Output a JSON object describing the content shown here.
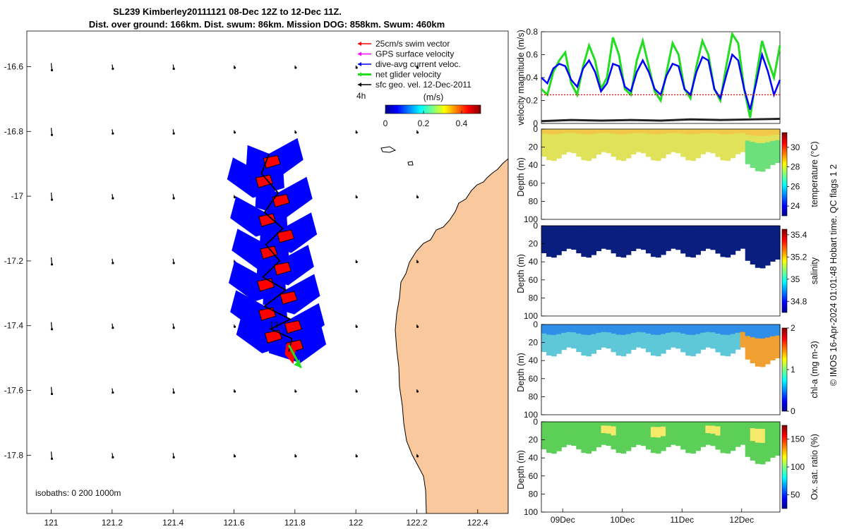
{
  "header": {
    "line1": "SL239 Kimberley20111121 08-Dec 12Z to 12-Dec 11Z.",
    "line2": "Dist. over ground: 166km. Dist. swum: 86km. Mission DOG: 858km. Swum: 460km"
  },
  "footer": {
    "credit": "© IMOS 16-Apr-2024 01:01:48 Hobart time. QC flags 1  2",
    "isobaths": "isobaths: 0   200  1000m"
  },
  "colors": {
    "land": "#F9C89C",
    "track": "#0000FF",
    "swim": "#FF0000",
    "net": "#22DD22",
    "black": "#000000"
  },
  "chart_data": [
    {
      "type": "scatter",
      "name": "glider-track-map",
      "x_ticks": [
        "121",
        "121.2",
        "121.4",
        "121.6",
        "121.8",
        "122",
        "122.2",
        "122.4"
      ],
      "y_ticks": [
        "-16.6",
        "-16.8",
        "-17",
        "-17.2",
        "-17.4",
        "-17.6",
        "-17.8"
      ],
      "xlim": [
        120.92,
        122.5
      ],
      "ylim": [
        -17.98,
        -16.49
      ],
      "legend": [
        {
          "label": "25cm/s swim vector",
          "color": "#FF0000"
        },
        {
          "label": "GPS surface velocity",
          "color": "#FF00FF"
        },
        {
          "label": "dive-avg current veloc.",
          "color": "#0000FF"
        },
        {
          "label": "net glider velocity",
          "color": "#22DD22"
        },
        {
          "label": "sfc geo. vel. 12-Dec-2011",
          "color": "#000000"
        }
      ],
      "colorbar": {
        "label": "(m/s)",
        "ticks": [
          "0",
          "0.2",
          "0.4"
        ],
        "range": [
          0,
          0.5
        ]
      },
      "annotations": {
        "time_label": "4h",
        "track_label": "12"
      },
      "track_lon": [
        121.715,
        121.69,
        121.745,
        121.7,
        121.76,
        121.705,
        121.75,
        121.695,
        121.77,
        121.7,
        121.785,
        121.72,
        121.79,
        121.78
      ],
      "track_lat": [
        -16.87,
        -16.93,
        -16.99,
        -17.05,
        -17.1,
        -17.15,
        -17.2,
        -17.25,
        -17.29,
        -17.34,
        -17.38,
        -17.41,
        -17.44,
        -17.48
      ],
      "net_velocity_vector": {
        "from": [
          121.78,
          -17.46
        ],
        "to": [
          121.82,
          -17.53
        ]
      }
    },
    {
      "type": "line",
      "name": "velocity-magnitude",
      "ylabel": "velocity magnitude (m/s)",
      "ylim": [
        0,
        0.8
      ],
      "y_ticks": [
        "0",
        "0.2",
        "0.4",
        "0.6",
        "0.8"
      ],
      "xlim": [
        0,
        4
      ],
      "series": [
        {
          "name": "net glider velocity",
          "color": "#22DD22",
          "x": [
            0,
            0.1,
            0.2,
            0.3,
            0.4,
            0.5,
            0.6,
            0.7,
            0.8,
            0.9,
            1.0,
            1.1,
            1.2,
            1.3,
            1.4,
            1.5,
            1.6,
            1.7,
            1.8,
            1.9,
            2.0,
            2.1,
            2.2,
            2.3,
            2.4,
            2.5,
            2.6,
            2.7,
            2.8,
            2.9,
            3.0,
            3.1,
            3.2,
            3.3,
            3.4,
            3.5,
            3.6,
            3.7,
            3.8,
            3.9,
            4.0
          ],
          "values": [
            0.3,
            0.25,
            0.45,
            0.55,
            0.62,
            0.35,
            0.25,
            0.5,
            0.68,
            0.55,
            0.3,
            0.4,
            0.75,
            0.6,
            0.3,
            0.25,
            0.55,
            0.72,
            0.5,
            0.28,
            0.2,
            0.45,
            0.7,
            0.6,
            0.3,
            0.22,
            0.5,
            0.72,
            0.6,
            0.3,
            0.2,
            0.5,
            0.78,
            0.7,
            0.3,
            0.05,
            0.4,
            0.72,
            0.55,
            0.4,
            0.68
          ]
        },
        {
          "name": "dive-avg current veloc.",
          "color": "#0000FF",
          "x": [
            0,
            0.1,
            0.2,
            0.3,
            0.4,
            0.5,
            0.6,
            0.7,
            0.8,
            0.9,
            1.0,
            1.1,
            1.2,
            1.3,
            1.4,
            1.5,
            1.6,
            1.7,
            1.8,
            1.9,
            2.0,
            2.1,
            2.2,
            2.3,
            2.4,
            2.5,
            2.6,
            2.7,
            2.8,
            2.9,
            3.0,
            3.1,
            3.2,
            3.3,
            3.4,
            3.5,
            3.6,
            3.7,
            3.8,
            3.9,
            4.0
          ],
          "values": [
            0.4,
            0.35,
            0.48,
            0.52,
            0.5,
            0.38,
            0.32,
            0.48,
            0.55,
            0.45,
            0.28,
            0.35,
            0.52,
            0.5,
            0.32,
            0.28,
            0.45,
            0.55,
            0.45,
            0.3,
            0.25,
            0.42,
            0.52,
            0.5,
            0.3,
            0.25,
            0.45,
            0.58,
            0.55,
            0.3,
            0.22,
            0.42,
            0.6,
            0.55,
            0.3,
            0.12,
            0.35,
            0.6,
            0.45,
            0.25,
            0.38
          ]
        },
        {
          "name": "25cm/s swim vector",
          "color": "#FF0000",
          "x": [
            0,
            4
          ],
          "values": [
            0.25,
            0.25
          ]
        },
        {
          "name": "sfc geo. vel.",
          "color": "#222222",
          "x": [
            0,
            0.5,
            1.0,
            1.5,
            2.0,
            2.5,
            3.0,
            3.5,
            4.0
          ],
          "values": [
            0.02,
            0.03,
            0.025,
            0.03,
            0.025,
            0.035,
            0.03,
            0.035,
            0.04
          ]
        }
      ]
    },
    {
      "type": "heatmap",
      "name": "temperature-section",
      "ylabel": "Depth (m)",
      "cbar_label": "temperature (°C)",
      "y_ticks": [
        "0",
        "20",
        "40",
        "60",
        "80",
        "100"
      ],
      "cbar_ticks": [
        "24",
        "26",
        "28",
        "30"
      ],
      "cbar_range": [
        23,
        31.5
      ]
    },
    {
      "type": "heatmap",
      "name": "salinity-section",
      "ylabel": "Depth (m)",
      "cbar_label": "salinity",
      "y_ticks": [
        "0",
        "20",
        "40",
        "60",
        "80",
        "100"
      ],
      "cbar_ticks": [
        "34.8",
        "35",
        "35.2",
        "35.4"
      ],
      "cbar_range": [
        34.7,
        35.45
      ]
    },
    {
      "type": "heatmap",
      "name": "chl-a-section",
      "ylabel": "Depth (m)",
      "cbar_label": "chl-a (mg m-3)",
      "y_ticks": [
        "0",
        "20",
        "40",
        "60",
        "80",
        "100"
      ],
      "cbar_ticks": [
        "0",
        "1",
        "2"
      ],
      "cbar_range": [
        0,
        2
      ]
    },
    {
      "type": "heatmap",
      "name": "oxygen-section",
      "ylabel": "Depth (m)",
      "cbar_label": "Ox. sat. ratio (%)",
      "y_ticks": [
        "0",
        "20",
        "40",
        "60",
        "80",
        "100"
      ],
      "cbar_ticks": [
        "50",
        "100",
        "150"
      ],
      "cbar_range": [
        25,
        175
      ],
      "x_ticks": [
        "09Dec",
        "10Dec",
        "11Dec",
        "12Dec"
      ]
    }
  ]
}
